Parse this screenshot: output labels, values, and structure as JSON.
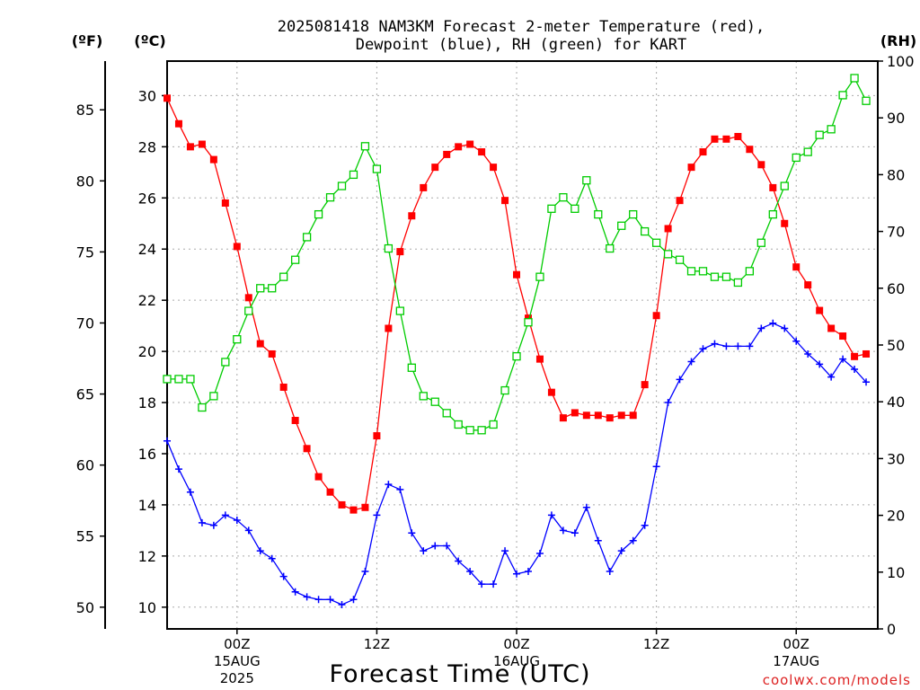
{
  "chart_data": {
    "type": "line",
    "title_line1": "2025081418 NAM3KM Forecast 2-meter Temperature (red),",
    "title_line2": "Dewpoint (blue), RH (green) for KART",
    "unit_f": "(ºF)",
    "unit_c": "(ºC)",
    "unit_rh": "(RH)",
    "xlabel": "Forecast Time (UTC)",
    "credit": "coolwx.com/models",
    "grid": true,
    "x_range_hours": [
      0,
      61
    ],
    "y_left_celsius_range": [
      9.15,
      31.35
    ],
    "y_right_rh_range": [
      0,
      100
    ],
    "y_far_left_fahrenheit_ticks": [
      "85",
      "80",
      "75",
      "70",
      "65",
      "60",
      "55",
      "50"
    ],
    "y_left_celsius_ticks": [
      "30",
      "28",
      "26",
      "24",
      "22",
      "20",
      "18",
      "16",
      "14",
      "12",
      "10"
    ],
    "y_right_rh_ticks": [
      "100",
      "90",
      "80",
      "70",
      "60",
      "50",
      "40",
      "30",
      "20",
      "10",
      "0"
    ],
    "x_ticks": [
      {
        "hour": 6,
        "line1": "00Z",
        "line2": "15AUG",
        "line3": "2025"
      },
      {
        "hour": 18,
        "line1": "12Z",
        "line2": "",
        "line3": ""
      },
      {
        "hour": 30,
        "line1": "00Z",
        "line2": "16AUG",
        "line3": ""
      },
      {
        "hour": 42,
        "line1": "12Z",
        "line2": "",
        "line3": ""
      },
      {
        "hour": 54,
        "line1": "00Z",
        "line2": "17AUG",
        "line3": ""
      }
    ],
    "series": [
      {
        "name": "2-meter Temperature",
        "axis": "celsius",
        "color": "#ff0000",
        "marker": "filled-square",
        "values": [
          29.9,
          28.9,
          28.0,
          28.1,
          27.5,
          25.8,
          24.1,
          22.1,
          20.3,
          19.9,
          18.6,
          17.3,
          16.2,
          15.1,
          14.5,
          14.0,
          13.8,
          13.9,
          16.7,
          20.9,
          23.9,
          25.3,
          26.4,
          27.2,
          27.7,
          28.0,
          28.1,
          27.8,
          27.2,
          25.9,
          23.0,
          21.3,
          19.7,
          18.4,
          17.4,
          17.6,
          17.5,
          17.5,
          17.4,
          17.5,
          17.5,
          18.7,
          21.4,
          24.8,
          25.9,
          27.2,
          27.8,
          28.3,
          28.3,
          28.4,
          27.9,
          27.3,
          26.4,
          25.0,
          23.3,
          22.6,
          21.6,
          20.9,
          20.6,
          19.8,
          19.9
        ]
      },
      {
        "name": "Dewpoint",
        "axis": "celsius",
        "color": "#0000ff",
        "marker": "plus",
        "values": [
          16.5,
          15.4,
          14.5,
          13.3,
          13.2,
          13.6,
          13.4,
          13.0,
          12.2,
          11.9,
          11.2,
          10.6,
          10.4,
          10.3,
          10.3,
          10.1,
          10.3,
          11.4,
          13.6,
          14.8,
          14.6,
          12.9,
          12.2,
          12.4,
          12.4,
          11.8,
          11.4,
          10.9,
          10.9,
          12.2,
          11.3,
          11.4,
          12.1,
          13.6,
          13.0,
          12.9,
          13.9,
          12.6,
          11.4,
          12.2,
          12.6,
          13.2,
          15.5,
          18.0,
          18.9,
          19.6,
          20.1,
          20.3,
          20.2,
          20.2,
          20.2,
          20.9,
          21.1,
          20.9,
          20.4,
          19.9,
          19.5,
          19.0,
          19.7,
          19.3,
          18.8
        ]
      },
      {
        "name": "RH",
        "axis": "rh",
        "color": "#00cc00",
        "marker": "open-square",
        "values": [
          44,
          44,
          44,
          39,
          41,
          47,
          51,
          56,
          60,
          60,
          62,
          65,
          69,
          73,
          76,
          78,
          80,
          85,
          81,
          67,
          56,
          46,
          41,
          40,
          38,
          36,
          35,
          35,
          36,
          42,
          48,
          54,
          62,
          74,
          76,
          74,
          79,
          73,
          67,
          71,
          73,
          70,
          68,
          66,
          65,
          63,
          63,
          62,
          62,
          61,
          63,
          68,
          73,
          78,
          83,
          84,
          87,
          88,
          94,
          97,
          93
        ]
      }
    ]
  }
}
